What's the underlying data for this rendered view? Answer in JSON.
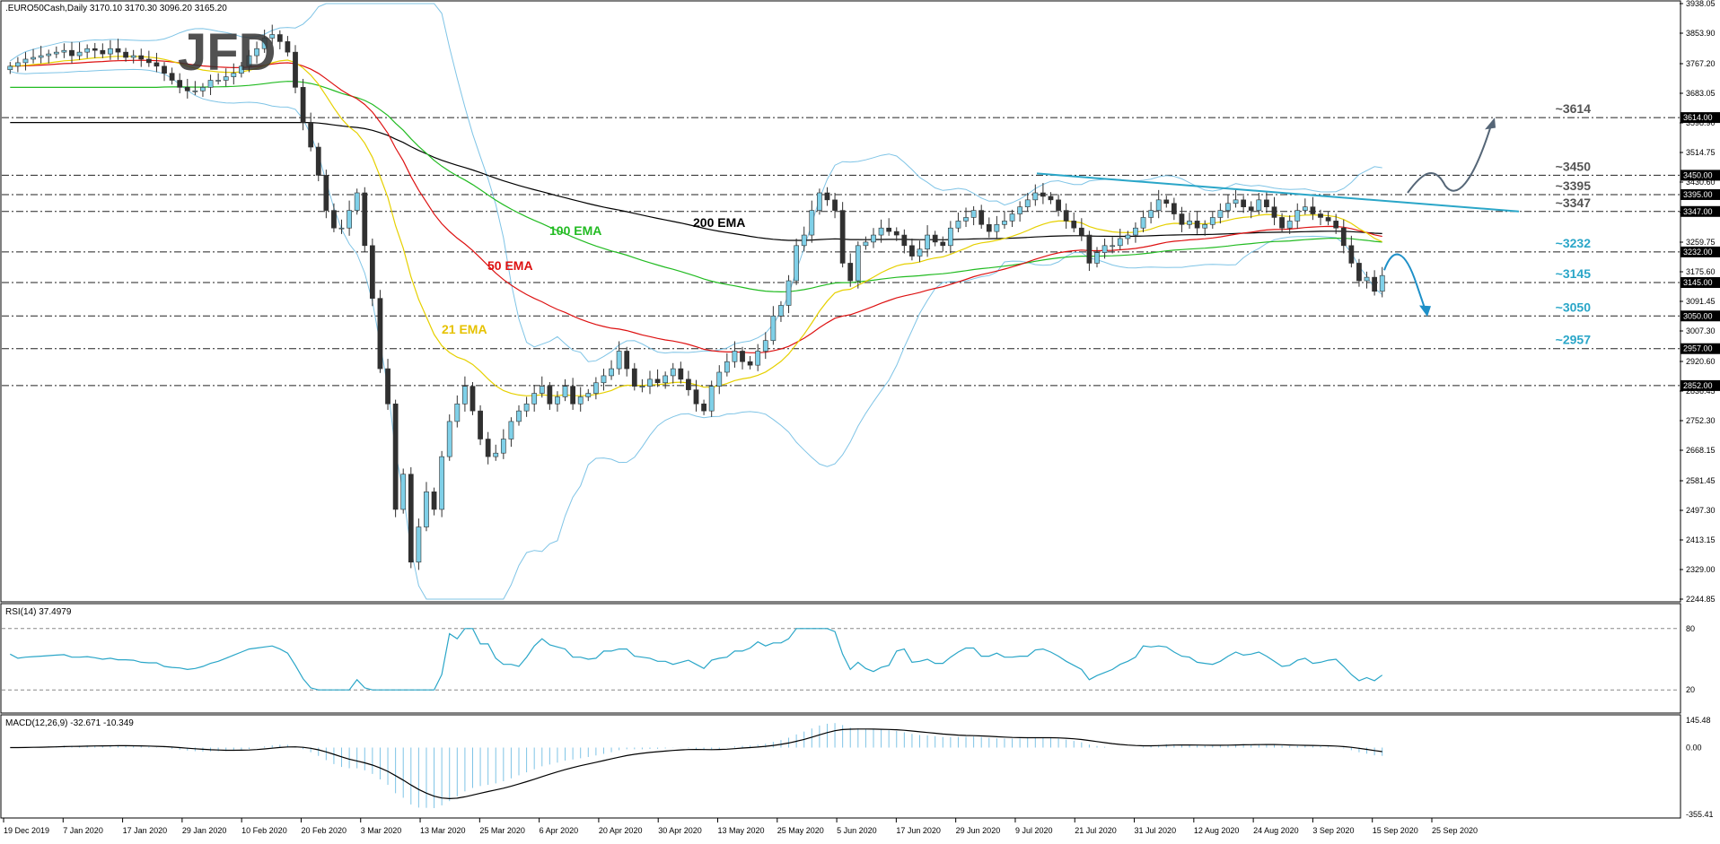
{
  "chart_data": {
    "type": "candlestick",
    "symbol_header": ".EURO50Cash,Daily  3170.10 3170.30 3096.20 3165.20",
    "watermark": "JFD",
    "price_axis": {
      "range": [
        2244.85,
        3938.05
      ],
      "ticks": [
        "3938.05",
        "3853.90",
        "3767.20",
        "3683.05",
        "3598.90",
        "3514.75",
        "3430.60",
        "3345.45",
        "3259.75",
        "3175.60",
        "3091.45",
        "3007.30",
        "2920.60",
        "2836.45",
        "2752.30",
        "2668.15",
        "2581.45",
        "2497.30",
        "2413.15",
        "2329.00",
        "2244.85"
      ]
    },
    "x_axis": {
      "labels": [
        "19 Dec 2019",
        "7 Jan 2020",
        "17 Jan 2020",
        "29 Jan 2020",
        "10 Feb 2020",
        "20 Feb 2020",
        "3 Mar 2020",
        "13 Mar 2020",
        "25 Mar 2020",
        "6 Apr 2020",
        "20 Apr 2020",
        "30 Apr 2020",
        "13 May 2020",
        "25 May 2020",
        "5 Jun 2020",
        "17 Jun 2020",
        "29 Jun 2020",
        "9 Jul 2020",
        "21 Jul 2020",
        "31 Jul 2020",
        "12 Aug 2020",
        "24 Aug 2020",
        "3 Sep 2020",
        "15 Sep 2020",
        "25 Sep 2020"
      ]
    },
    "horizontal_levels": [
      {
        "value": 3614,
        "price_tag": "3614.00",
        "label": "~3614",
        "label_color": "#555555"
      },
      {
        "value": 3450,
        "price_tag": "3450.00",
        "label": "~3450",
        "label_color": "#555555"
      },
      {
        "value": 3395,
        "price_tag": "3395.00",
        "label": "~3395",
        "label_color": "#555555"
      },
      {
        "value": 3347,
        "price_tag": "3347.00",
        "label": "~3347",
        "label_color": "#555555"
      },
      {
        "value": 3232,
        "price_tag": "3232.00",
        "label": "~3232",
        "label_color": "#2aa6c8"
      },
      {
        "value": 3145,
        "price_tag": "3145.00",
        "label": "~3145",
        "label_color": "#2aa6c8"
      },
      {
        "value": 3050,
        "price_tag": "3050.00",
        "label": "~3050",
        "label_color": "#2aa6c8"
      },
      {
        "value": 2957,
        "price_tag": "2957.00",
        "label": "~2957",
        "label_color": "#2aa6c8"
      },
      {
        "value": 2852,
        "price_tag": "2852.00",
        "label": "",
        "label_color": "#555555"
      }
    ],
    "indicator_labels": [
      {
        "text": "200 EMA",
        "color": "#000000"
      },
      {
        "text": "100 EMA",
        "color": "#22bb22"
      },
      {
        "text": "50 EMA",
        "color": "#dd1111"
      },
      {
        "text": "21 EMA",
        "color": "#e6c200"
      }
    ],
    "series_colors": {
      "bull_candle": "#7fd0e8",
      "bear_candle": "#303030",
      "ema200": "#000000",
      "ema100": "#22bb22",
      "ema50": "#dd1111",
      "ema21": "#e6d000",
      "bollinger": "#7fc4e6",
      "trendline": "#2aa6c8",
      "projection_up": "#556677",
      "projection_down": "#1e90c8"
    },
    "closes": [
      3760,
      3770,
      3780,
      3785,
      3790,
      3795,
      3800,
      3805,
      3790,
      3800,
      3810,
      3805,
      3795,
      3810,
      3800,
      3785,
      3790,
      3780,
      3770,
      3760,
      3740,
      3720,
      3700,
      3690,
      3690,
      3700,
      3720,
      3720,
      3730,
      3740,
      3760,
      3790,
      3810,
      3840,
      3850,
      3830,
      3800,
      3700,
      3600,
      3530,
      3450,
      3350,
      3300,
      3300,
      3350,
      3400,
      3250,
      3100,
      2900,
      2800,
      2500,
      2600,
      2350,
      2450,
      2550,
      2500,
      2650,
      2750,
      2800,
      2850,
      2780,
      2700,
      2650,
      2660,
      2700,
      2750,
      2780,
      2800,
      2830,
      2850,
      2800,
      2820,
      2850,
      2800,
      2820,
      2830,
      2860,
      2880,
      2900,
      2950,
      2900,
      2850,
      2850,
      2870,
      2860,
      2880,
      2900,
      2870,
      2840,
      2800,
      2780,
      2850,
      2890,
      2920,
      2950,
      2920,
      2910,
      2950,
      2980,
      3050,
      3080,
      3150,
      3250,
      3280,
      3350,
      3400,
      3380,
      3350,
      3200,
      3150,
      3250,
      3260,
      3280,
      3300,
      3290,
      3280,
      3250,
      3220,
      3240,
      3280,
      3260,
      3250,
      3300,
      3320,
      3330,
      3350,
      3310,
      3290,
      3310,
      3320,
      3340,
      3360,
      3380,
      3400,
      3390,
      3380,
      3350,
      3320,
      3300,
      3280,
      3200,
      3230,
      3250,
      3250,
      3270,
      3280,
      3300,
      3330,
      3350,
      3380,
      3370,
      3340,
      3310,
      3320,
      3300,
      3310,
      3330,
      3350,
      3370,
      3380,
      3360,
      3350,
      3380,
      3360,
      3330,
      3300,
      3320,
      3350,
      3360,
      3340,
      3330,
      3320,
      3300,
      3250,
      3200,
      3150,
      3160,
      3120,
      3165
    ]
  }
}
